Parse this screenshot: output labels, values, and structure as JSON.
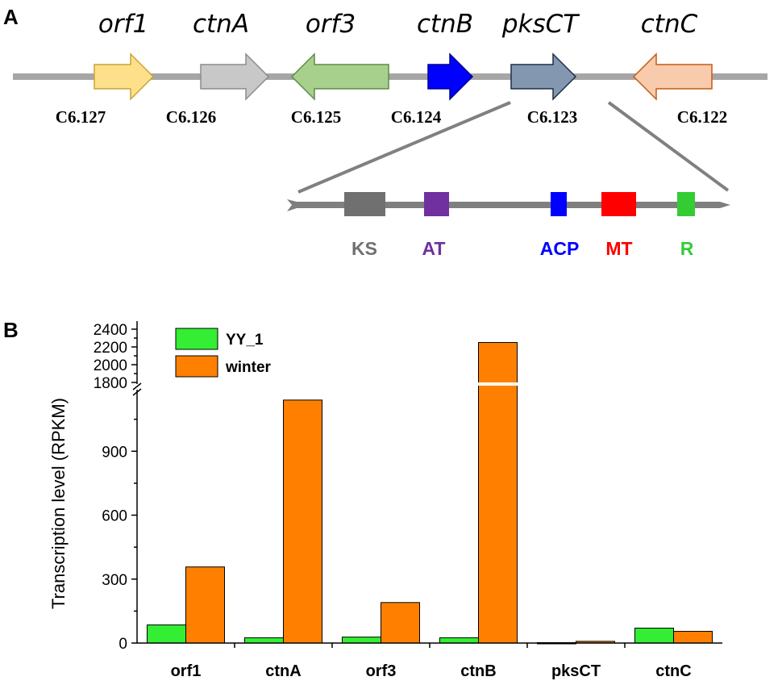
{
  "panel_a": {
    "label": "A",
    "genes": [
      {
        "name": "orf1",
        "locus": "C6.127",
        "direction": "forward",
        "color": "#FFE08A",
        "stroke": "#C9A33A"
      },
      {
        "name": "ctnA",
        "locus": "C6.126",
        "direction": "forward",
        "color": "#C8C8C8",
        "stroke": "#8C8C8C"
      },
      {
        "name": "orf3",
        "locus": "C6.125",
        "direction": "reverse",
        "color": "#A8D08D",
        "stroke": "#5E8B45"
      },
      {
        "name": "ctnB",
        "locus": "C6.124",
        "direction": "forward",
        "color": "#0000FF",
        "stroke": "#00008B"
      },
      {
        "name": "pksCT",
        "locus": "C6.123",
        "direction": "forward",
        "color": "#8497B0",
        "stroke": "#1F2F4A"
      },
      {
        "name": "ctnC",
        "locus": "C6.122",
        "direction": "reverse",
        "color": "#F8CBAD",
        "stroke": "#C55A11"
      }
    ],
    "domains": [
      {
        "name": "KS",
        "color": "#707070"
      },
      {
        "name": "AT",
        "color": "#7030A0"
      },
      {
        "name": "ACP",
        "color": "#0000FF"
      },
      {
        "name": "MT",
        "color": "#FF0000"
      },
      {
        "name": "R",
        "color": "#33CC33"
      }
    ]
  },
  "chart_data": {
    "panel_label": "B",
    "type": "bar",
    "categories": [
      "orf1",
      "ctnA",
      "orf3",
      "ctnB",
      "pksCT",
      "ctnC"
    ],
    "series": [
      {
        "name": "YY_1",
        "color": "#33EE33",
        "values": [
          85,
          25,
          28,
          25,
          2,
          70
        ]
      },
      {
        "name": "winter",
        "color": "#FF8000",
        "values": [
          357,
          1140,
          190,
          2250,
          8,
          55
        ]
      }
    ],
    "ylabel": "Transcription level (RPKM)",
    "xlabel": "",
    "lower_ylim": [
      0,
      1200
    ],
    "upper_ylim": [
      1800,
      2400
    ],
    "lower_ticks": [
      "0",
      "300",
      "600",
      "900"
    ],
    "upper_ticks": [
      "1800",
      "2000",
      "2200",
      "2400"
    ],
    "axis_break": true
  }
}
